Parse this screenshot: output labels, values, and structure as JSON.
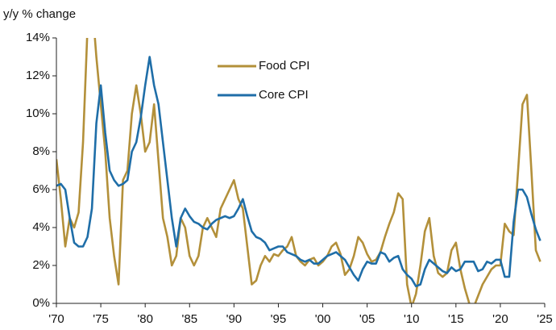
{
  "chart_data": {
    "type": "line",
    "ylabel": "y/y % change",
    "x": [
      1970.0,
      1970.5,
      1971.0,
      1971.5,
      1972.0,
      1972.5,
      1973.0,
      1973.5,
      1974.0,
      1974.5,
      1975.0,
      1975.5,
      1976.0,
      1976.5,
      1977.0,
      1977.5,
      1978.0,
      1978.5,
      1979.0,
      1979.5,
      1980.0,
      1980.5,
      1981.0,
      1981.5,
      1982.0,
      1982.5,
      1983.0,
      1983.5,
      1984.0,
      1984.5,
      1985.0,
      1985.5,
      1986.0,
      1986.5,
      1987.0,
      1987.5,
      1988.0,
      1988.5,
      1989.0,
      1989.5,
      1990.0,
      1990.5,
      1991.0,
      1991.5,
      1992.0,
      1992.5,
      1993.0,
      1993.5,
      1994.0,
      1994.5,
      1995.0,
      1995.5,
      1996.0,
      1996.5,
      1997.0,
      1997.5,
      1998.0,
      1998.5,
      1999.0,
      1999.5,
      2000.0,
      2000.5,
      2001.0,
      2001.5,
      2002.0,
      2002.5,
      2003.0,
      2003.5,
      2004.0,
      2004.5,
      2005.0,
      2005.5,
      2006.0,
      2006.5,
      2007.0,
      2007.5,
      2008.0,
      2008.5,
      2009.0,
      2009.5,
      2010.0,
      2010.5,
      2011.0,
      2011.5,
      2012.0,
      2012.5,
      2013.0,
      2013.5,
      2014.0,
      2014.5,
      2015.0,
      2015.5,
      2016.0,
      2016.5,
      2017.0,
      2017.5,
      2018.0,
      2018.5,
      2019.0,
      2019.5,
      2020.0,
      2020.5,
      2021.0,
      2021.5,
      2022.0,
      2022.5,
      2023.0,
      2023.5,
      2024.0,
      2024.5
    ],
    "series": [
      {
        "name": "Food CPI",
        "color": "#b3903a",
        "values": [
          7.6,
          5.5,
          3.0,
          4.5,
          4.0,
          4.8,
          8.5,
          14.5,
          16.0,
          13.0,
          10.5,
          8.0,
          4.5,
          2.5,
          1.0,
          6.5,
          7.0,
          10.0,
          11.5,
          10.0,
          8.0,
          8.5,
          10.5,
          7.5,
          4.5,
          3.5,
          2.0,
          2.5,
          4.5,
          4.0,
          2.5,
          2.0,
          2.5,
          4.0,
          4.5,
          4.0,
          3.5,
          5.0,
          5.5,
          6.0,
          6.5,
          5.5,
          5.0,
          3.0,
          1.0,
          1.2,
          2.0,
          2.5,
          2.2,
          2.6,
          2.5,
          2.8,
          3.0,
          3.5,
          2.5,
          2.2,
          2.0,
          2.3,
          2.4,
          2.0,
          2.2,
          2.5,
          3.0,
          3.2,
          2.6,
          1.5,
          1.8,
          2.5,
          3.5,
          3.2,
          2.6,
          2.2,
          2.3,
          2.7,
          3.5,
          4.2,
          4.8,
          5.8,
          5.5,
          1.0,
          -0.2,
          0.5,
          2.0,
          3.8,
          4.5,
          2.5,
          1.6,
          1.4,
          1.6,
          2.8,
          3.2,
          1.8,
          0.8,
          0.0,
          -0.2,
          0.4,
          1.0,
          1.4,
          1.8,
          2.0,
          2.0,
          4.2,
          3.8,
          3.6,
          7.0,
          10.5,
          11.0,
          7.0,
          2.8,
          2.2
        ]
      },
      {
        "name": "Core CPI",
        "color": "#1f6ea8",
        "values": [
          6.2,
          6.3,
          6.0,
          4.5,
          3.2,
          3.0,
          3.0,
          3.5,
          5.0,
          9.5,
          11.5,
          9.0,
          7.0,
          6.5,
          6.2,
          6.3,
          6.5,
          8.0,
          8.5,
          9.8,
          11.5,
          13.0,
          11.5,
          10.5,
          8.5,
          6.5,
          4.5,
          3.0,
          4.5,
          5.0,
          4.6,
          4.3,
          4.2,
          4.0,
          3.9,
          4.2,
          4.4,
          4.5,
          4.6,
          4.5,
          4.6,
          5.0,
          5.5,
          4.6,
          3.8,
          3.5,
          3.4,
          3.2,
          2.8,
          2.9,
          3.0,
          3.0,
          2.7,
          2.6,
          2.5,
          2.3,
          2.2,
          2.3,
          2.1,
          2.1,
          2.3,
          2.5,
          2.6,
          2.7,
          2.5,
          2.3,
          1.9,
          1.5,
          1.2,
          1.8,
          2.2,
          2.1,
          2.1,
          2.7,
          2.6,
          2.2,
          2.4,
          2.5,
          1.8,
          1.5,
          1.3,
          0.9,
          1.0,
          1.8,
          2.3,
          2.1,
          1.9,
          1.7,
          1.6,
          1.9,
          1.7,
          1.8,
          2.2,
          2.2,
          2.2,
          1.7,
          1.8,
          2.2,
          2.1,
          2.3,
          2.3,
          1.4,
          1.4,
          4.3,
          6.0,
          6.0,
          5.6,
          4.7,
          3.9,
          3.3
        ]
      }
    ],
    "xlim": [
      1970,
      2025
    ],
    "xticks": [
      {
        "value": 1970,
        "label": "'70"
      },
      {
        "value": 1975,
        "label": "'75"
      },
      {
        "value": 1980,
        "label": "'80"
      },
      {
        "value": 1985,
        "label": "'85"
      },
      {
        "value": 1990,
        "label": "'90"
      },
      {
        "value": 1995,
        "label": "'95"
      },
      {
        "value": 2000,
        "label": "'00"
      },
      {
        "value": 2005,
        "label": "'05"
      },
      {
        "value": 2010,
        "label": "'10"
      },
      {
        "value": 2015,
        "label": "'15"
      },
      {
        "value": 2020,
        "label": "'20"
      },
      {
        "value": 2025,
        "label": "'25"
      }
    ],
    "ylim": [
      0,
      14
    ],
    "yticks": [
      {
        "value": 0,
        "label": "0%"
      },
      {
        "value": 2,
        "label": "2%"
      },
      {
        "value": 4,
        "label": "4%"
      },
      {
        "value": 6,
        "label": "6%"
      },
      {
        "value": 8,
        "label": "8%"
      },
      {
        "value": 10,
        "label": "10%"
      },
      {
        "value": 12,
        "label": "12%"
      },
      {
        "value": 14,
        "label": "14%"
      }
    ]
  }
}
